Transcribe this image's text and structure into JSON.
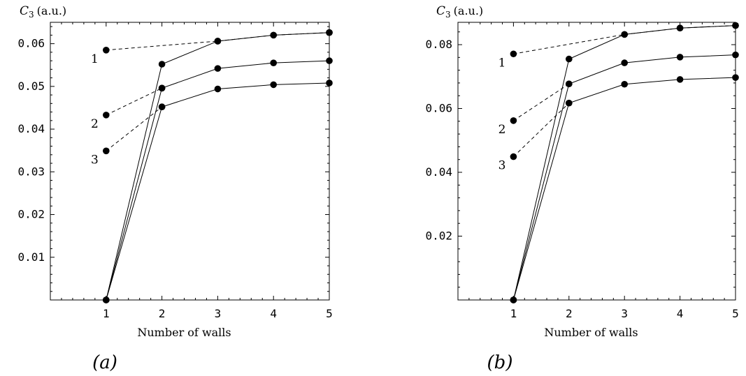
{
  "chart_data": [
    {
      "type": "line",
      "ylabel_main": "C",
      "ylabel_sub": "3",
      "ylabel_unit": "(a.u.)",
      "xlabel": "Number of walls",
      "panel_label": "(a)",
      "xlim": [
        0,
        5
      ],
      "ylim": [
        0,
        0.065
      ],
      "x_ticks": [
        1,
        2,
        3,
        4,
        5
      ],
      "y_ticks": [
        0.01,
        0.02,
        0.03,
        0.04,
        0.05,
        0.06
      ],
      "y_tick_labels": [
        "0.01",
        "0.02",
        "0.03",
        "0.04",
        "0.05",
        "0.06"
      ],
      "series": [
        {
          "label": "1",
          "style": "solid",
          "x": [
            1,
            2,
            3,
            4,
            5
          ],
          "values": [
            0,
            0.0552,
            0.0606,
            0.062,
            0.0626
          ]
        },
        {
          "label": "2",
          "style": "solid",
          "x": [
            1,
            2,
            3,
            4,
            5
          ],
          "values": [
            0,
            0.0496,
            0.0542,
            0.0555,
            0.056
          ]
        },
        {
          "label": "3",
          "style": "solid",
          "x": [
            1,
            2,
            3,
            4,
            5
          ],
          "values": [
            0,
            0.0452,
            0.0494,
            0.0504,
            0.0508
          ]
        },
        {
          "label": "1",
          "style": "dashed",
          "x": [
            1,
            3,
            4,
            5
          ],
          "values": [
            0.0585,
            0.0606,
            0.062,
            0.0626
          ]
        },
        {
          "label": "2",
          "style": "dashed",
          "x": [
            1,
            2
          ],
          "values": [
            0.0433,
            0.0496
          ]
        },
        {
          "label": "3",
          "style": "dashed",
          "x": [
            1,
            2
          ],
          "values": [
            0.0349,
            0.0452
          ]
        }
      ],
      "curve_labels": [
        {
          "text": "1",
          "x": 1,
          "y": 0.0585
        },
        {
          "text": "2",
          "x": 1,
          "y": 0.0433
        },
        {
          "text": "3",
          "x": 1,
          "y": 0.0349
        }
      ]
    },
    {
      "type": "line",
      "ylabel_main": "C",
      "ylabel_sub": "3",
      "ylabel_unit": "(a.u.)",
      "xlabel": "Number of walls",
      "panel_label": "(b)",
      "xlim": [
        0,
        5
      ],
      "ylim": [
        0,
        0.087
      ],
      "x_ticks": [
        1,
        2,
        3,
        4,
        5
      ],
      "y_ticks": [
        0.02,
        0.04,
        0.06,
        0.08
      ],
      "y_tick_labels": [
        "0.02",
        "0.04",
        "0.06",
        "0.08"
      ],
      "series": [
        {
          "label": "1",
          "style": "solid",
          "x": [
            1,
            2,
            3,
            4,
            5
          ],
          "values": [
            0,
            0.0755,
            0.0832,
            0.0852,
            0.086
          ]
        },
        {
          "label": "2",
          "style": "solid",
          "x": [
            1,
            2,
            3,
            4,
            5
          ],
          "values": [
            0,
            0.0677,
            0.0743,
            0.0761,
            0.0768
          ]
        },
        {
          "label": "3",
          "style": "solid",
          "x": [
            1,
            2,
            3,
            4,
            5
          ],
          "values": [
            0,
            0.0617,
            0.0676,
            0.0691,
            0.0697
          ]
        },
        {
          "label": "1",
          "style": "dashed",
          "x": [
            1,
            3,
            4,
            5
          ],
          "values": [
            0.0771,
            0.0832,
            0.0852,
            0.086
          ]
        },
        {
          "label": "2",
          "style": "dashed",
          "x": [
            1,
            2
          ],
          "values": [
            0.0562,
            0.0677
          ]
        },
        {
          "label": "3",
          "style": "dashed",
          "x": [
            1,
            2
          ],
          "values": [
            0.0449,
            0.0617
          ]
        }
      ],
      "curve_labels": [
        {
          "text": "1",
          "x": 1,
          "y": 0.0771
        },
        {
          "text": "2",
          "x": 1,
          "y": 0.0562
        },
        {
          "text": "3",
          "x": 1,
          "y": 0.0449
        }
      ]
    }
  ]
}
